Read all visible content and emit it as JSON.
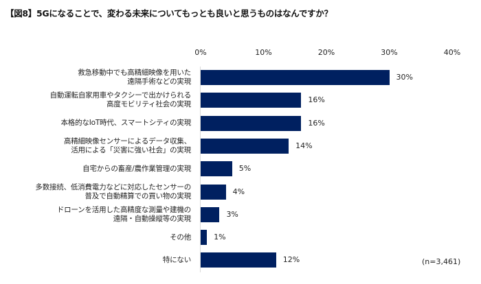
{
  "title": "【図8】5Gになることで、変わる未来についてもっとも良いと思うものはなんですか？",
  "sample_note": "(n=3,461)",
  "bar_color": "#002060",
  "axis": {
    "ticks": [
      "0%",
      "10%",
      "20%",
      "30%",
      "40%"
    ]
  },
  "rows": [
    {
      "label_lines": [
        "救急移動中でも高精細映像を用いた",
        "遠隔手術などの実現"
      ],
      "value": 30,
      "value_label": "30%"
    },
    {
      "label_lines": [
        "自動運転自家用車やタクシーで出かけられる",
        "高度モビリティ社会の実現"
      ],
      "value": 16,
      "value_label": "16%"
    },
    {
      "label_lines": [
        "本格的なIoT時代、スマートシティの実現"
      ],
      "value": 16,
      "value_label": "16%"
    },
    {
      "label_lines": [
        "高精細映像センサーによるデータ収集、",
        "活用による「災害に強い社会」の実現"
      ],
      "value": 14,
      "value_label": "14%"
    },
    {
      "label_lines": [
        "自宅からの畜産/農作業管理の実現"
      ],
      "value": 5,
      "value_label": "5%"
    },
    {
      "label_lines": [
        "多数接続、低消費電力などに対応したセンサーの",
        "普及で自動精算での買い物の実現"
      ],
      "value": 4,
      "value_label": "4%"
    },
    {
      "label_lines": [
        "ドローンを活用した高精度な測量や建機の",
        "遠隔・自動操縦等の実現"
      ],
      "value": 3,
      "value_label": "3%"
    },
    {
      "label_lines": [
        "その他"
      ],
      "value": 1,
      "value_label": "1%"
    },
    {
      "label_lines": [
        "特にない"
      ],
      "value": 12,
      "value_label": "12%"
    }
  ],
  "chart_data": {
    "type": "bar",
    "orientation": "horizontal",
    "title": "【図8】5Gになることで、変わる未来についてもっとも良いと思うものはなんですか？",
    "categories": [
      "救急移動中でも高精細映像を用いた遠隔手術などの実現",
      "自動運転自家用車やタクシーで出かけられる高度モビリティ社会の実現",
      "本格的なIoT時代、スマートシティの実現",
      "高精細映像センサーによるデータ収集、活用による「災害に強い社会」の実現",
      "自宅からの畜産/農作業管理の実現",
      "多数接続、低消費電力などに対応したセンサーの普及で自動精算での買い物の実現",
      "ドローンを活用した高精度な測量や建機の遠隔・自動操縦等の実現",
      "その他",
      "特にない"
    ],
    "values": [
      30,
      16,
      16,
      14,
      5,
      4,
      3,
      1,
      12
    ],
    "unit": "%",
    "xlabel": "",
    "ylabel": "",
    "xlim": [
      0,
      40
    ],
    "x_ticks": [
      "0%",
      "10%",
      "20%",
      "30%",
      "40%"
    ],
    "x_axis_position": "top",
    "grid": false,
    "legend": null,
    "annotations": [
      "(n=3,461)"
    ]
  }
}
